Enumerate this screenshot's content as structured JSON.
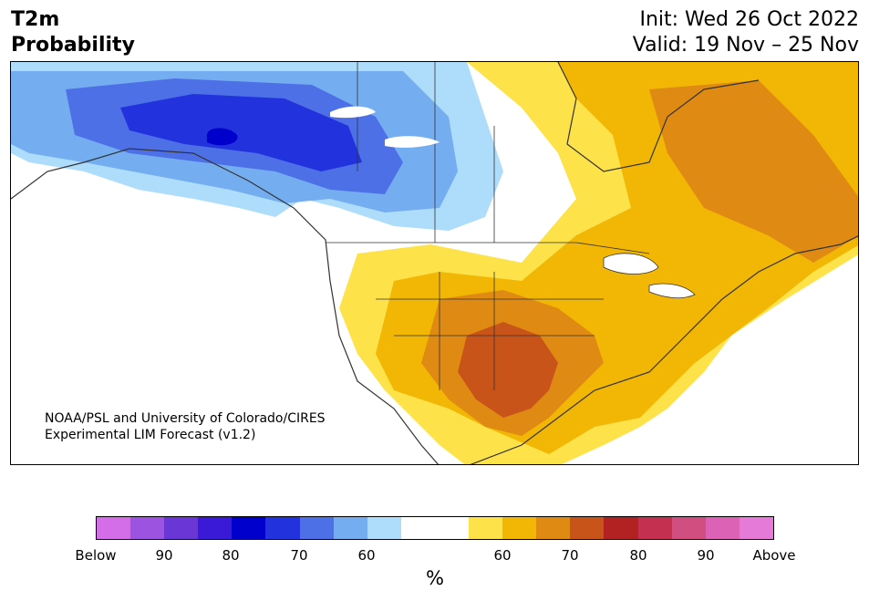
{
  "title": {
    "left_line1": "T2m",
    "left_line2": "Probability",
    "right_line1": "Init: Wed 26 Oct 2022",
    "right_line2": "Valid: 19 Nov – 25 Nov"
  },
  "credit": {
    "line1": "NOAA/PSL and University of Colorado/CIRES",
    "line2": "Experimental LIM Forecast (v1.2)"
  },
  "colorbar": {
    "colors": [
      "#d36ee8",
      "#9c54e0",
      "#6a36d6",
      "#3a1ad6",
      "#0000cc",
      "#2233dd",
      "#4e70e6",
      "#74aef0",
      "#aedcfb",
      "#ffffff",
      "#ffffff",
      "#fde24a",
      "#f2b705",
      "#df8a12",
      "#c8541a",
      "#b32222",
      "#c43150",
      "#d04e80",
      "#dc62b5",
      "#e67ad9"
    ],
    "tick_labels": [
      "Below",
      "90",
      "80",
      "70",
      "60",
      "60",
      "70",
      "80",
      "90",
      "Above"
    ],
    "unit": "%"
  },
  "map": {
    "regions_legend": {
      "alaska_core": "#0000cc",
      "alaska_inner": "#2233dd",
      "west_canada": "#4e70e6",
      "prairies": "#74aef0",
      "outer_cold": "#aedcfb",
      "us_light": "#fde24a",
      "us_mid": "#f2b705",
      "southwest": "#df8a12",
      "texas": "#c8541a"
    }
  }
}
